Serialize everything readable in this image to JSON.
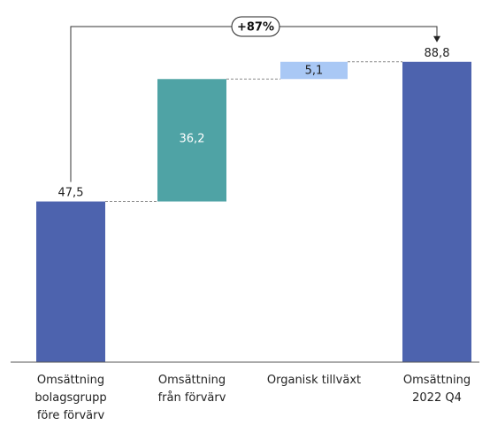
{
  "chart_data": {
    "type": "waterfall",
    "categories": [
      "Omsättning bolagsgrupp före förvärv",
      "Omsättning från förvärv",
      "Organisk tillväxt",
      "Omsättning 2022 Q4"
    ],
    "category_lines": [
      [
        "Omsättning",
        "bolagsgrupp",
        "före förvärv"
      ],
      [
        "Omsättning",
        "från förvärv"
      ],
      [
        "Organisk tillväxt"
      ],
      [
        "Omsättning",
        "2022 Q4"
      ]
    ],
    "steps": [
      {
        "kind": "total",
        "start": 0,
        "end": 47.5,
        "value": 47.5,
        "label": "47,5",
        "label_position": "above",
        "color": "#4D63AE"
      },
      {
        "kind": "increase",
        "start": 47.5,
        "end": 83.7,
        "value": 36.2,
        "label": "36,2",
        "label_position": "inside",
        "color": "#4FA3A5"
      },
      {
        "kind": "increase",
        "start": 83.7,
        "end": 88.8,
        "value": 5.1,
        "label": "5,1",
        "label_position": "inside",
        "color": "#A9C8F5"
      },
      {
        "kind": "total",
        "start": 0,
        "end": 88.8,
        "value": 88.8,
        "label": "88,8",
        "label_position": "above",
        "color": "#4D63AE"
      }
    ],
    "growth_annotation": {
      "label": "+87%",
      "from_category": 0,
      "to_category": 3
    },
    "ylim": [
      0,
      100
    ],
    "grid": false,
    "legend": "none",
    "title": "",
    "xlabel": "",
    "ylabel": ""
  }
}
